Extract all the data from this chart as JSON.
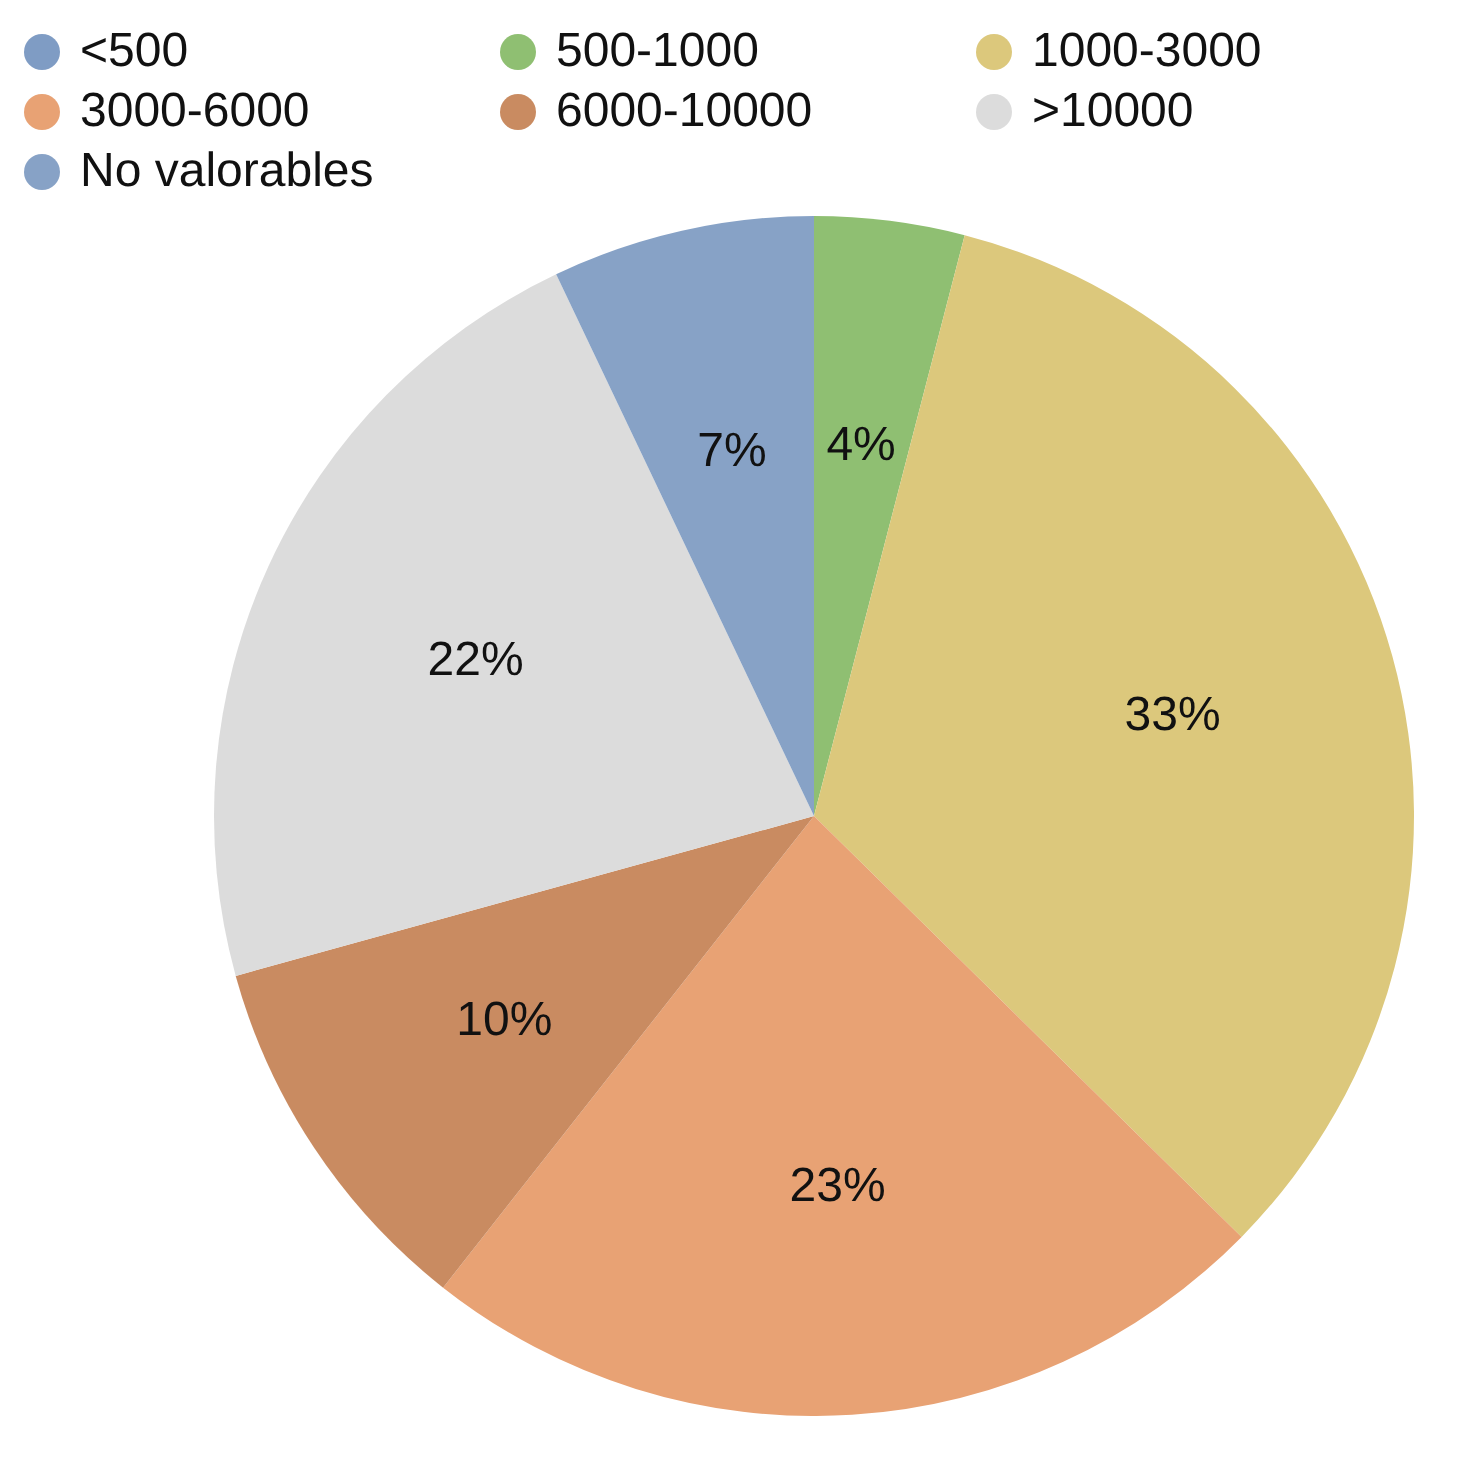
{
  "chart_data": {
    "type": "pie",
    "categories": [
      "<500",
      "500-1000",
      "1000-3000",
      "3000-6000",
      "6000-10000",
      ">10000",
      "No valorables"
    ],
    "values": [
      0,
      4,
      33,
      23,
      10,
      22,
      7
    ],
    "colors": [
      "#7f9cc4",
      "#8fbf72",
      "#dcc87c",
      "#e8a274",
      "#c98b61",
      "#dcdcdc",
      "#87a2c6"
    ],
    "value_labels": [
      null,
      "4%",
      "33%",
      "23%",
      "10%",
      "22%",
      "7%"
    ],
    "legend": "top left"
  }
}
